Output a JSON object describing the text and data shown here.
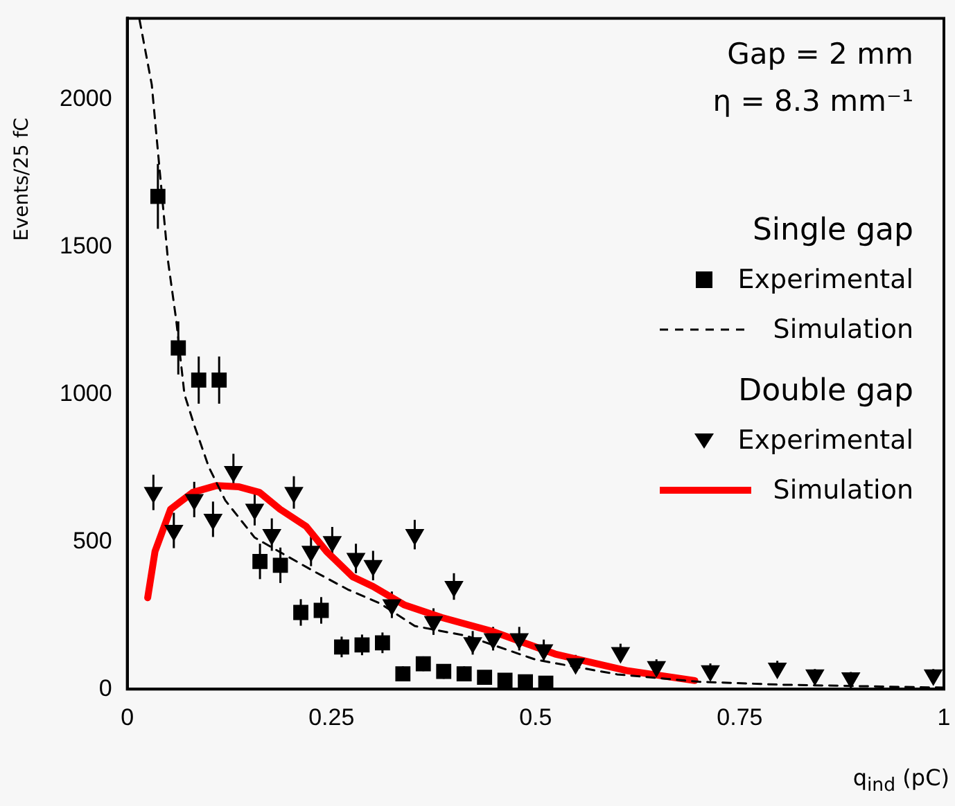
{
  "chart_data": {
    "type": "scatter",
    "xlabel": "q$_{ind}$ (pC)",
    "ylabel": "Events/25 fC",
    "xlim": [
      0,
      1
    ],
    "xticks": [
      0,
      0.25,
      0.5,
      0.75,
      1
    ],
    "ylim": [
      0,
      2275
    ],
    "yticks": [
      0,
      500,
      1000,
      1500,
      2000
    ],
    "grid": false,
    "legend": "right",
    "annotations": [
      "Gap = 2 mm",
      "η = 8.3 mm⁻¹",
      "Single gap",
      "Double gap"
    ],
    "series": [
      {
        "name": "Experimental",
        "marker": "square",
        "color": "#000000",
        "x": [
          0.0375,
          0.0625,
          0.0875,
          0.1125,
          0.1625,
          0.1875,
          0.2125,
          0.2375,
          0.2625,
          0.2875,
          0.3125,
          0.3375,
          0.3625,
          0.3875,
          0.4125,
          0.4375,
          0.4625,
          0.4875,
          0.5125
        ],
        "values": [
          1671,
          1157,
          1048,
          1048,
          433,
          420,
          260,
          267,
          143,
          150,
          157,
          52,
          86,
          60,
          52,
          40,
          30,
          25,
          20
        ],
        "errors": [
          110,
          90,
          80,
          80,
          60,
          60,
          45,
          45,
          35,
          35,
          35,
          25,
          25,
          25,
          25,
          20,
          20,
          15,
          15
        ]
      },
      {
        "name": "Simulation",
        "type": "line",
        "marker": "none",
        "line_style": "dashed",
        "color": "#000000",
        "x": [
          0.015,
          0.03,
          0.04,
          0.05,
          0.06,
          0.07,
          0.082,
          0.1,
          0.12,
          0.156,
          0.19,
          0.225,
          0.27,
          0.31,
          0.352,
          0.415,
          0.5,
          0.6,
          0.7,
          0.8,
          0.9,
          1.0
        ],
        "values": [
          2270,
          2050,
          1750,
          1450,
          1250,
          1000,
          895,
          752,
          640,
          514,
          460,
          405,
          338,
          290,
          214,
          181,
          100,
          50,
          25,
          15,
          10,
          5
        ]
      },
      {
        "name": "Experimental",
        "marker": "triangle",
        "color": "#000000",
        "x": [
          0.032,
          0.057,
          0.082,
          0.105,
          0.13,
          0.156,
          0.177,
          0.204,
          0.225,
          0.251,
          0.28,
          0.301,
          0.324,
          0.352,
          0.375,
          0.4,
          0.423,
          0.448,
          0.48,
          0.51,
          0.549,
          0.604,
          0.648,
          0.714,
          0.796,
          0.842,
          0.886,
          0.987
        ],
        "values": [
          667,
          538,
          643,
          576,
          738,
          610,
          524,
          667,
          467,
          500,
          443,
          419,
          286,
          524,
          229,
          348,
          157,
          171,
          171,
          133,
          86,
          124,
          76,
          62,
          71,
          48,
          38,
          48
        ],
        "errors": [
          60,
          60,
          60,
          60,
          60,
          55,
          55,
          55,
          50,
          50,
          50,
          50,
          45,
          50,
          45,
          45,
          40,
          40,
          40,
          35,
          30,
          30,
          25,
          25,
          25,
          20,
          20,
          20
        ]
      },
      {
        "name": "Simulation",
        "type": "line",
        "marker": "none",
        "line_style": "solid",
        "color": "#ff0000",
        "x": [
          0.025,
          0.034,
          0.053,
          0.08,
          0.109,
          0.137,
          0.162,
          0.187,
          0.219,
          0.244,
          0.276,
          0.301,
          0.339,
          0.385,
          0.448,
          0.524,
          0.613,
          0.695
        ],
        "values": [
          310,
          467,
          610,
          667,
          690,
          686,
          667,
          610,
          552,
          467,
          381,
          348,
          286,
          243,
          195,
          119,
          62,
          29
        ]
      }
    ]
  }
}
